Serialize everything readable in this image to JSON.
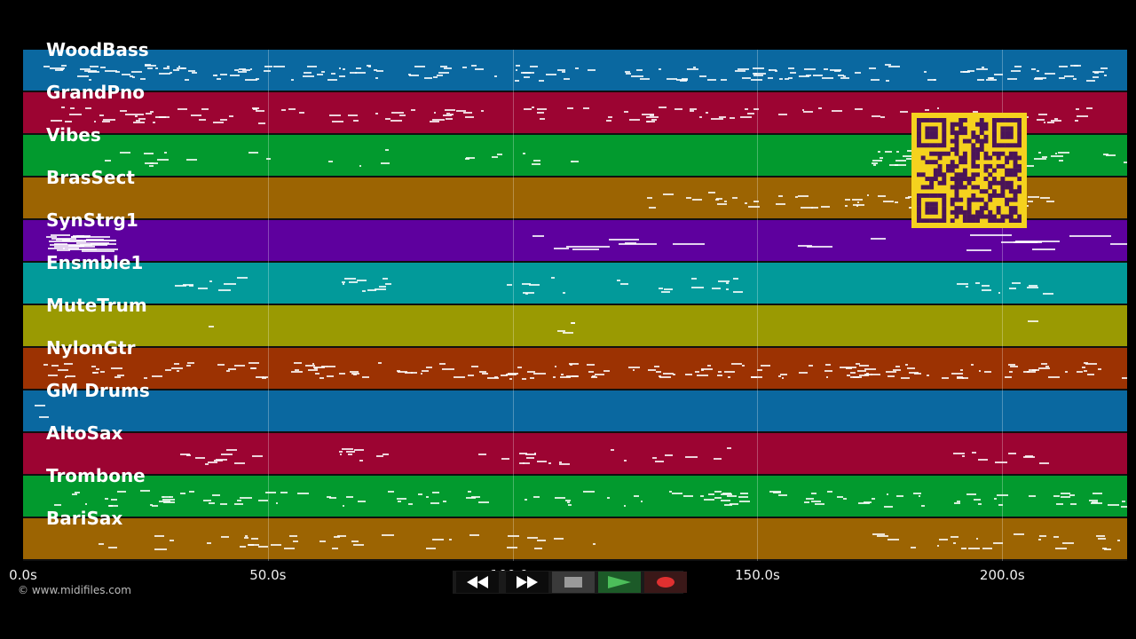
{
  "tracks": [
    {
      "name": "WoodBass",
      "color": "#0a68a0",
      "density": "dense"
    },
    {
      "name": "GrandPno",
      "color": "#9c0432",
      "density": "mixed"
    },
    {
      "name": "Vibes",
      "color": "#029a2e",
      "density": "sparse"
    },
    {
      "name": "BrasSect",
      "color": "#9c6402",
      "density": "late"
    },
    {
      "name": "SynStrg1",
      "color": "#5e009e",
      "density": "long"
    },
    {
      "name": "Ensmble1",
      "color": "#029a9a",
      "density": "phrases"
    },
    {
      "name": "MuteTrum",
      "color": "#9a9a02",
      "density": "rare"
    },
    {
      "name": "NylonGtr",
      "color": "#9c3202",
      "density": "dense"
    },
    {
      "name": "GM Drums",
      "color": "#0a68a0",
      "density": "empty"
    },
    {
      "name": "AltoSax",
      "color": "#9c0432",
      "density": "phrases"
    },
    {
      "name": "Trombone",
      "color": "#029a2e",
      "density": "mixed"
    },
    {
      "name": "BariSax",
      "color": "#9c6402",
      "density": "sparse"
    }
  ],
  "time_axis": {
    "ticks": [
      "0.0s",
      "50.0s",
      "100.0s",
      "150.0s",
      "200.0s"
    ],
    "max_seconds": 225.5
  },
  "copyright": "© www.midifiles.com",
  "transport": {
    "rewind": "rewind-icon",
    "fast_forward": "fast-forward-icon",
    "stop": "stop-icon",
    "play": "play-icon",
    "record": "record-icon",
    "play_color": "#4cbe5a",
    "record_color": "#e03030"
  },
  "qr_color": "#f5d21e"
}
